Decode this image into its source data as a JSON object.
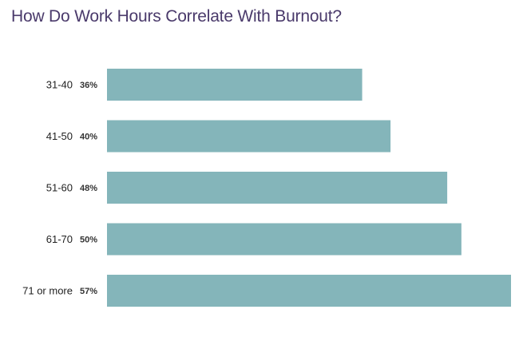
{
  "chart_data": {
    "type": "bar",
    "orientation": "horizontal",
    "title": "How Do Work Hours Correlate With Burnout?",
    "xlabel": "",
    "ylabel": "",
    "categories": [
      "31-40",
      "41-50",
      "51-60",
      "61-70",
      "71 or more"
    ],
    "values": [
      36,
      40,
      48,
      50,
      57
    ],
    "value_labels": [
      "36%",
      "40%",
      "48%",
      "50%",
      "57%"
    ],
    "unit": "%",
    "grid": false,
    "legend": "none",
    "bar_color": "#84b5ba"
  }
}
